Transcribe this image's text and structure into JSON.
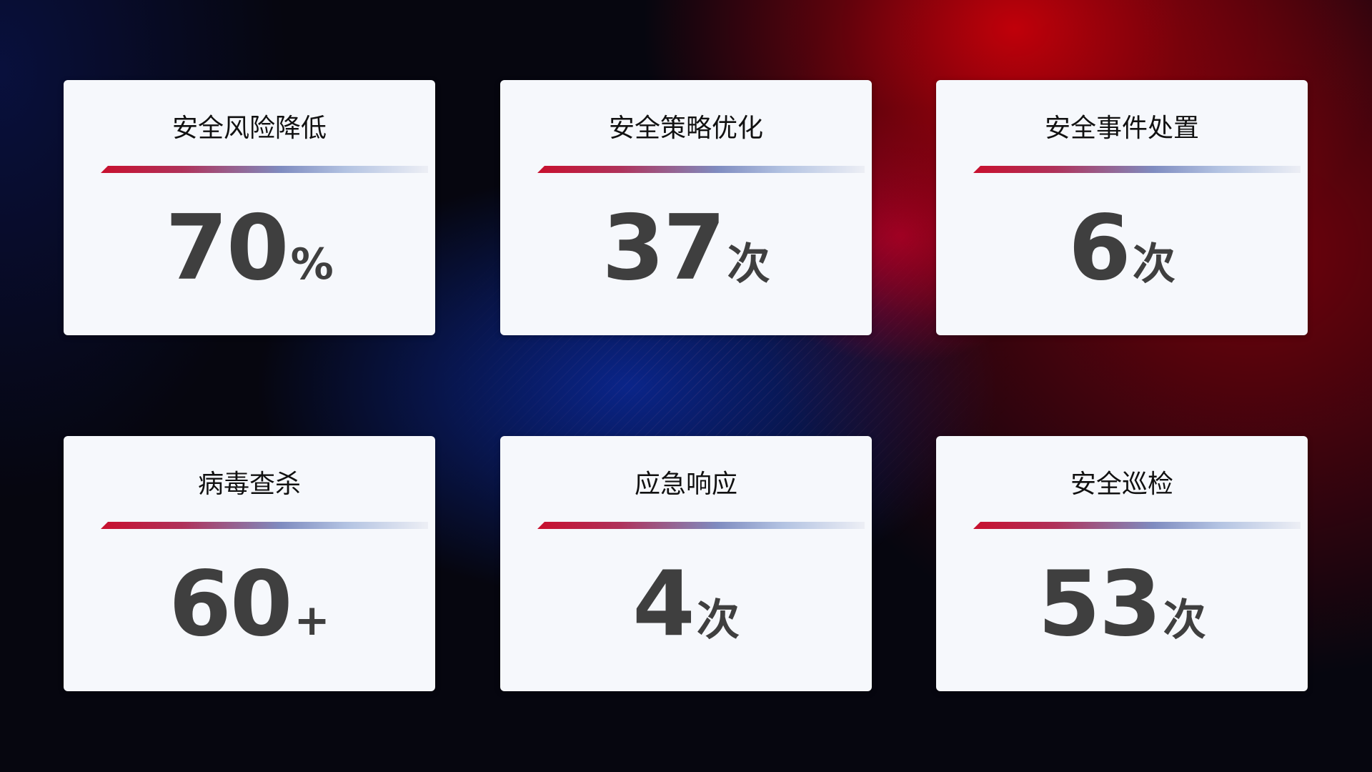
{
  "cards": [
    {
      "title": "安全风险降低",
      "value": "70",
      "unit": "%"
    },
    {
      "title": "安全策略优化",
      "value": "37",
      "unit": "次"
    },
    {
      "title": "安全事件处置",
      "value": "6",
      "unit": "次"
    },
    {
      "title": "病毒查杀",
      "value": "60",
      "unit": "+"
    },
    {
      "title": "应急响应",
      "value": "4",
      "unit": "次"
    },
    {
      "title": "安全巡检",
      "value": "53",
      "unit": "次"
    }
  ],
  "colors": {
    "accent_red": "#c8102e",
    "accent_blue": "#7f8cc0",
    "card_bg": "#f6f8fc",
    "value_text": "#3f3f3f"
  }
}
